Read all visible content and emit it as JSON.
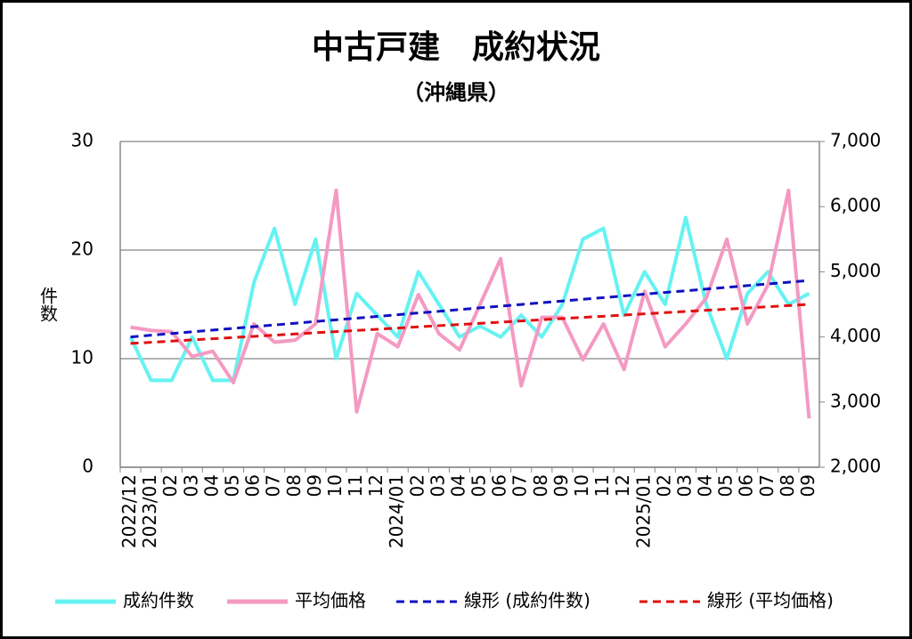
{
  "chart_data": {
    "type": "line",
    "title": "中古戸建　成約状況",
    "subtitle": "（沖縄県）",
    "ylabel": "件数",
    "categories": [
      "2022/12",
      "2023/01",
      "02",
      "03",
      "04",
      "05",
      "06",
      "07",
      "08",
      "09",
      "10",
      "11",
      "12",
      "2024/01",
      "02",
      "03",
      "04",
      "05",
      "06",
      "07",
      "08",
      "09",
      "10",
      "11",
      "12",
      "2025/01",
      "02",
      "03",
      "04",
      "05",
      "06",
      "07",
      "08",
      "09"
    ],
    "ylim": [
      0,
      30
    ],
    "yticks": [
      0,
      10,
      20,
      30
    ],
    "y2lim": [
      2000,
      7000
    ],
    "y2ticks": [
      {
        "value": 2000,
        "label": "2,000"
      },
      {
        "value": 3000,
        "label": "3,000"
      },
      {
        "value": 4000,
        "label": "4,000"
      },
      {
        "value": 5000,
        "label": "5,000"
      },
      {
        "value": 6000,
        "label": "6,000"
      },
      {
        "value": 7000,
        "label": "7,000"
      }
    ],
    "grid": true,
    "legend": "bottom",
    "series": [
      {
        "name": "成約件数",
        "color": "#66f2f2",
        "dashed": false,
        "values": [
          12,
          8,
          8,
          12,
          8,
          8,
          17,
          22,
          15,
          21,
          10,
          16,
          14,
          12,
          18,
          15,
          12,
          13,
          12,
          14,
          12,
          15,
          21,
          22,
          14,
          18,
          15,
          23,
          15,
          10,
          16,
          18,
          15,
          16
        ]
      },
      {
        "name": "平均価格",
        "color": "#f49ac2",
        "dashed": false,
        "axis": "y2",
        "values": [
          4150,
          4100,
          4080,
          3700,
          3780,
          3300,
          4200,
          3920,
          3950,
          4200,
          6250,
          2850,
          4050,
          3850,
          4650,
          4050,
          3800,
          4500,
          5200,
          3250,
          4300,
          4300,
          3650,
          4200,
          3500,
          4700,
          3850,
          4200,
          4600,
          5500,
          4200,
          4800,
          6250,
          2750
        ]
      },
      {
        "name": "線形 (成約件数)",
        "color": "#1010c0",
        "dashed": true,
        "values": [
          12,
          12.16,
          12.32,
          12.47,
          12.63,
          12.79,
          12.95,
          13.1,
          13.26,
          13.42,
          13.58,
          13.73,
          13.89,
          14.05,
          14.21,
          14.36,
          14.52,
          14.68,
          14.84,
          14.99,
          15.15,
          15.31,
          15.47,
          15.62,
          15.78,
          15.94,
          16.1,
          16.25,
          16.41,
          16.57,
          16.73,
          16.88,
          17.04,
          17.2
        ]
      },
      {
        "name": "線形 (平均価格)",
        "color": "#e01010",
        "dashed": true,
        "axis": "y2",
        "values": [
          3900,
          3918,
          3936,
          3955,
          3973,
          3991,
          4009,
          4027,
          4045,
          4064,
          4082,
          4100,
          4118,
          4136,
          4155,
          4173,
          4191,
          4209,
          4227,
          4245,
          4264,
          4282,
          4300,
          4318,
          4336,
          4355,
          4373,
          4391,
          4409,
          4427,
          4445,
          4464,
          4482,
          4500
        ]
      }
    ]
  }
}
